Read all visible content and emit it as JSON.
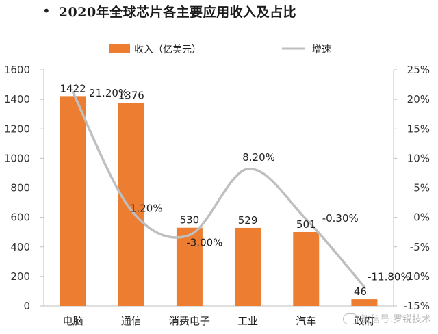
{
  "header": {
    "bullet": "•",
    "title": "2020年全球芯片各主要应用收入及占比"
  },
  "watermark": {
    "text": "微信号:罗锐技术"
  },
  "chart_data": {
    "type": "bar",
    "categories": [
      "电脑",
      "通信",
      "消费电子",
      "工业",
      "汽车",
      "政府"
    ],
    "series": [
      {
        "name": "收入（亿美元）",
        "kind": "bar",
        "axis": "left",
        "color": "#ED7D31",
        "values": [
          1422,
          1376,
          530,
          529,
          501,
          46
        ],
        "labels": [
          "1422",
          "1376",
          "530",
          "529",
          "501",
          "46"
        ]
      },
      {
        "name": "增速",
        "kind": "line",
        "axis": "right",
        "color": "#BFBFBF",
        "values": [
          21.2,
          1.2,
          -3.0,
          8.2,
          -0.3,
          -11.8
        ],
        "labels": [
          "21.20%",
          "1.20%",
          "-3.00%",
          "8.20%",
          "-0.30%",
          "-11.80%"
        ]
      }
    ],
    "y_left": {
      "ylim": [
        0,
        1600
      ],
      "ticks": [
        "0",
        "200",
        "400",
        "600",
        "800",
        "1000",
        "1200",
        "1400",
        "1600"
      ]
    },
    "y_right": {
      "ylim": [
        -15,
        25
      ],
      "ticks": [
        "-15%",
        "-10%",
        "-5%",
        "0%",
        "5%",
        "10%",
        "15%",
        "20%",
        "25%"
      ]
    },
    "legend_position": "top",
    "grid": false
  }
}
